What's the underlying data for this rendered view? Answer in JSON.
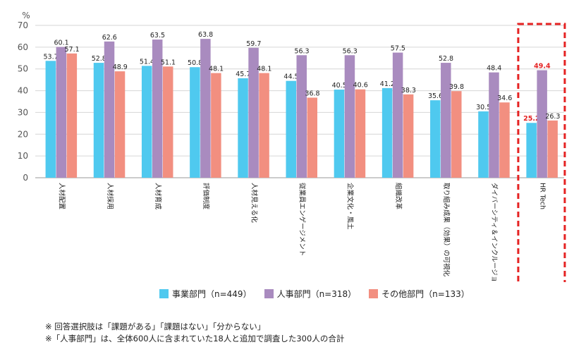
{
  "chart_data": {
    "type": "bar",
    "yunit": "%",
    "ylim": [
      0,
      70
    ],
    "yticks": [
      0,
      10,
      20,
      30,
      40,
      50,
      60,
      70
    ],
    "grid": true,
    "categories": [
      "人材配置",
      "人材採用",
      "人材育成",
      "評価制度",
      "人材見える化",
      "従業員エンゲージメント",
      "企業文化・風土",
      "組織改革",
      "取り組み成果（効果）の可視化",
      "ダイバーシティ＆インクルージョン",
      "HR Tech"
    ],
    "series": [
      {
        "name": "事業部門（n=449）",
        "color": "#4fc9ef",
        "values": [
          53.7,
          52.8,
          51.4,
          50.8,
          45.7,
          44.5,
          40.5,
          41.2,
          35.6,
          30.5,
          25.2
        ]
      },
      {
        "name": "人事部門（n=318）",
        "color": "#a98bbf",
        "values": [
          60.1,
          62.6,
          63.5,
          63.8,
          59.7,
          56.3,
          56.3,
          57.5,
          52.8,
          48.4,
          49.4
        ]
      },
      {
        "name": "その他部門（n=133）",
        "color": "#f28f80",
        "values": [
          57.1,
          48.9,
          51.1,
          48.1,
          48.1,
          36.8,
          40.6,
          38.3,
          39.8,
          34.6,
          26.3
        ]
      }
    ],
    "highlight_category": "HR Tech",
    "highlight_color": "#e52222",
    "legend_position": "bottom"
  },
  "notes": [
    "※ 回答選択肢は「課題がある」「課題はない」「分からない」",
    "※「人事部門」は、全体600人に含まれていた18人と追加で調査した300人の合計"
  ]
}
